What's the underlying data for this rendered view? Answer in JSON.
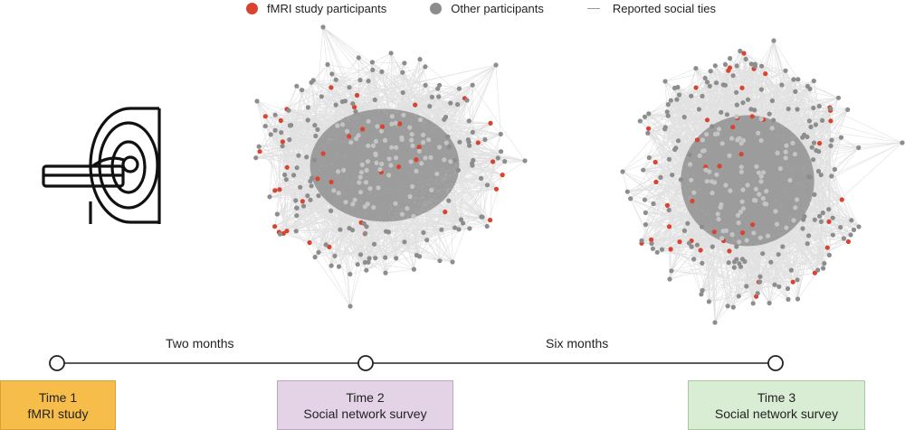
{
  "legend": {
    "fmri": {
      "label": "fMRI study participants",
      "color": "#d9432f"
    },
    "other": {
      "label": "Other participants",
      "color": "#8d8d8d"
    },
    "ties": {
      "label": "Reported social ties",
      "color": "#999999"
    }
  },
  "timeline": {
    "interval_1": "Two months",
    "interval_2": "Six months",
    "time1": {
      "title": "Time 1",
      "subtitle": "fMRI study"
    },
    "time2": {
      "title": "Time 2",
      "subtitle": "Social network survey"
    },
    "time3": {
      "title": "Time 3",
      "subtitle": "Social network survey"
    }
  },
  "icons": [
    "mri-scanner-icon"
  ]
}
